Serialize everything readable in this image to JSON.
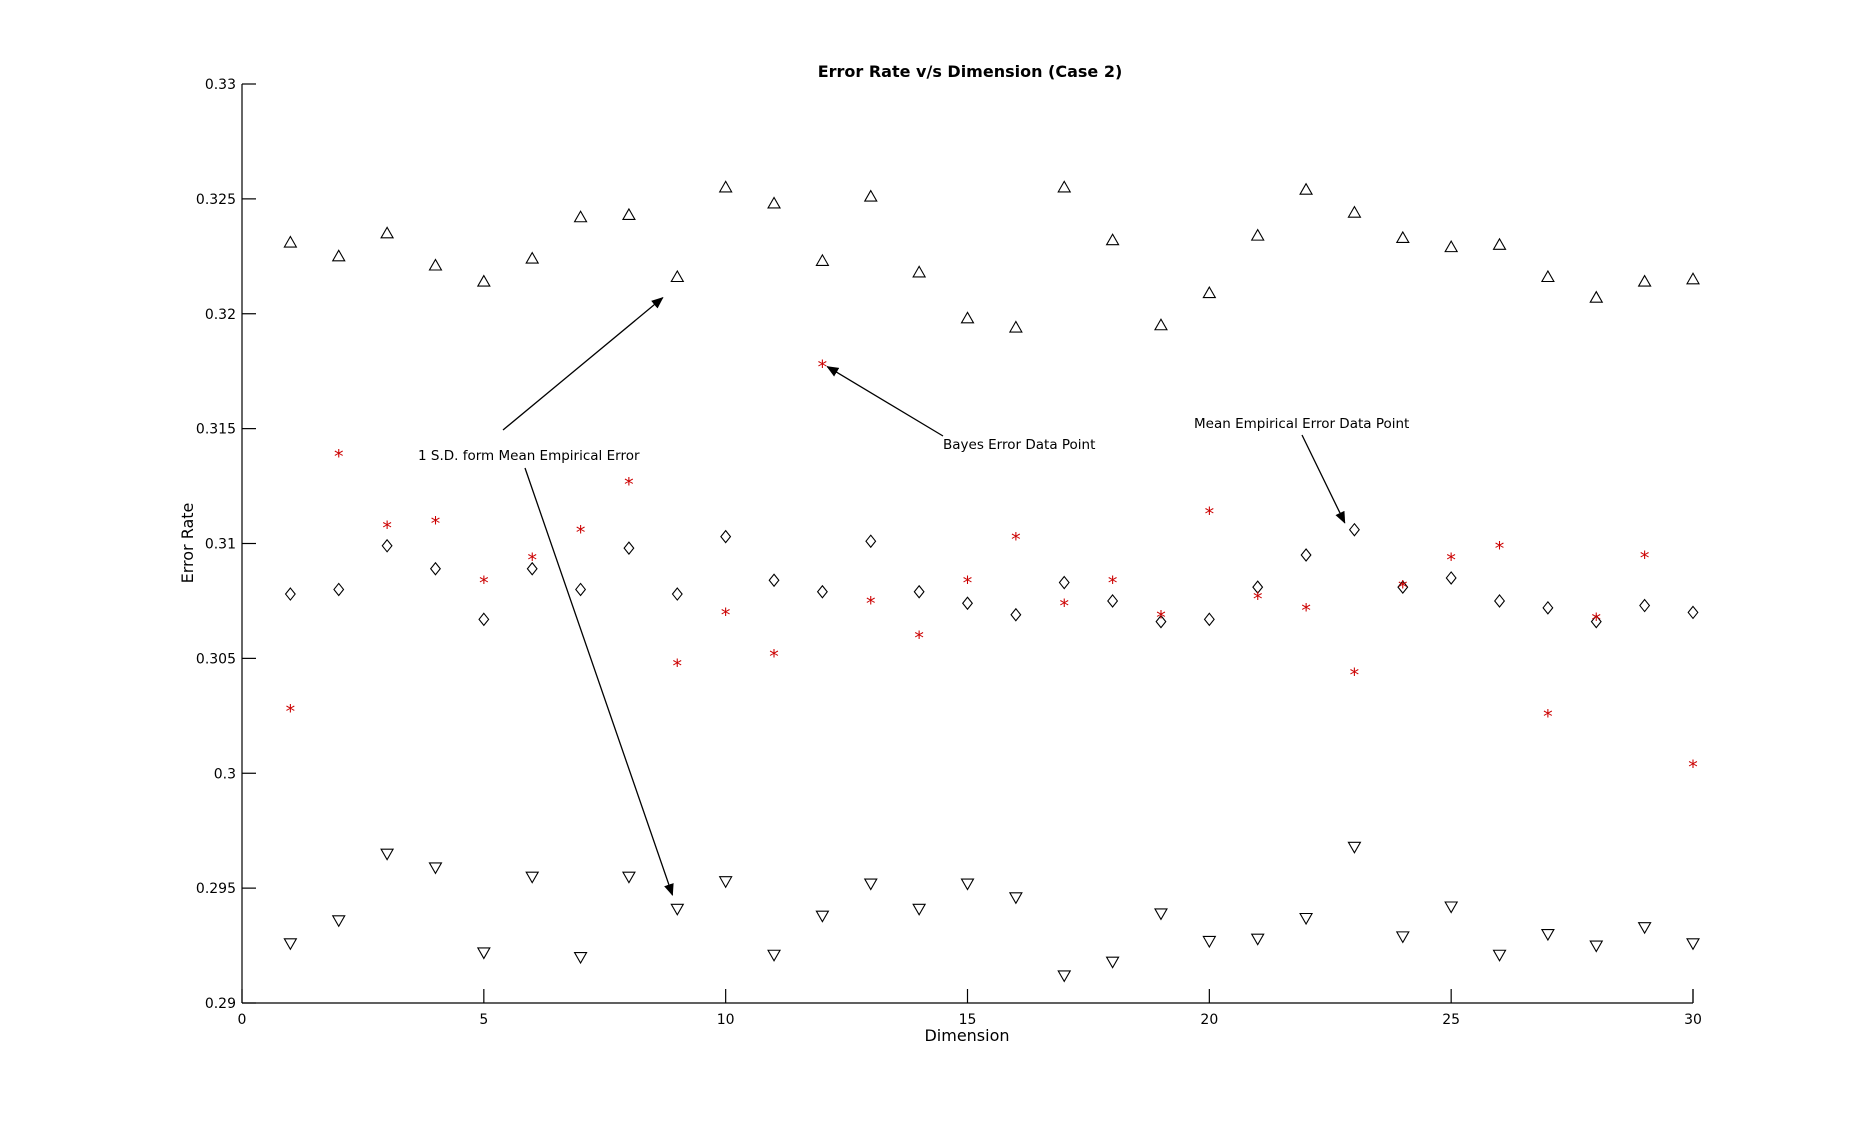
{
  "chart_data": {
    "type": "scatter",
    "title": "Error Rate v/s Dimension (Case 2)",
    "xlabel": "Dimension",
    "ylabel": "Error Rate",
    "xlim": [
      0,
      30
    ],
    "ylim": [
      0.29,
      0.33
    ],
    "xticks": [
      "0",
      "5",
      "10",
      "15",
      "20",
      "25",
      "30"
    ],
    "yticks": [
      "0.29",
      "0.295",
      "0.3",
      "0.305",
      "0.31",
      "0.315",
      "0.32",
      "0.325",
      "0.33"
    ],
    "grid": false,
    "x": [
      1,
      2,
      3,
      4,
      5,
      6,
      7,
      8,
      9,
      10,
      11,
      12,
      13,
      14,
      15,
      16,
      17,
      18,
      19,
      20,
      21,
      22,
      23,
      24,
      25,
      26,
      27,
      28,
      29,
      30
    ],
    "series": [
      {
        "marker": "triangle-up",
        "color": "#000000",
        "values": [
          0.3231,
          0.3225,
          0.3235,
          0.3221,
          0.3214,
          0.3224,
          0.3242,
          0.3243,
          0.3216,
          0.3255,
          0.3248,
          0.3223,
          0.3251,
          0.3218,
          0.3198,
          0.3194,
          0.3255,
          0.3232,
          0.3195,
          0.3209,
          0.3234,
          0.3254,
          0.3244,
          0.3233,
          0.3229,
          0.323,
          0.3216,
          0.3207,
          0.3214,
          0.3215
        ]
      },
      {
        "marker": "diamond",
        "color": "#000000",
        "values": [
          0.3078,
          0.308,
          0.3099,
          0.3089,
          0.3067,
          0.3089,
          0.308,
          0.3098,
          0.3078,
          0.3103,
          0.3084,
          0.3079,
          0.3101,
          0.3079,
          0.3074,
          0.3069,
          0.3083,
          0.3075,
          0.3066,
          0.3067,
          0.3081,
          0.3095,
          0.3106,
          0.3081,
          0.3085,
          0.3075,
          0.3072,
          0.3066,
          0.3073,
          0.307
        ]
      },
      {
        "marker": "star",
        "color": "#cc0000",
        "values": [
          0.3027,
          0.3138,
          0.3107,
          0.3109,
          0.3083,
          0.3093,
          0.3105,
          0.3126,
          0.3047,
          0.3069,
          0.3051,
          0.3177,
          0.3074,
          0.3059,
          0.3083,
          0.3102,
          0.3073,
          0.3083,
          0.3068,
          0.3113,
          0.3076,
          0.3071,
          0.3043,
          0.3081,
          0.3093,
          0.3098,
          0.3025,
          0.3067,
          0.3094,
          0.3003
        ]
      },
      {
        "marker": "triangle-down",
        "color": "#000000",
        "values": [
          0.2926,
          0.2936,
          0.2965,
          0.2959,
          0.2922,
          0.2955,
          0.292,
          0.2955,
          0.2941,
          0.2953,
          0.2921,
          0.2938,
          0.2952,
          0.2941,
          0.2952,
          0.2946,
          0.2912,
          0.2918,
          0.2939,
          0.2927,
          0.2928,
          0.2937,
          0.2968,
          0.2929,
          0.2942,
          0.2921,
          0.293,
          0.2925,
          0.2933,
          0.2926
        ]
      }
    ],
    "annotations": [
      {
        "text": "1 S.D. form Mean Empirical Error",
        "arrows_to": [
          [
            8.7,
            0.3207
          ],
          [
            8.9,
            0.2947
          ]
        ]
      },
      {
        "text": "Bayes Error Data Point",
        "arrows_to": [
          [
            12.1,
            0.3177
          ]
        ]
      },
      {
        "text": "Mean Empirical Error Data Point",
        "arrows_to": [
          [
            22.8,
            0.3109
          ]
        ]
      }
    ]
  }
}
